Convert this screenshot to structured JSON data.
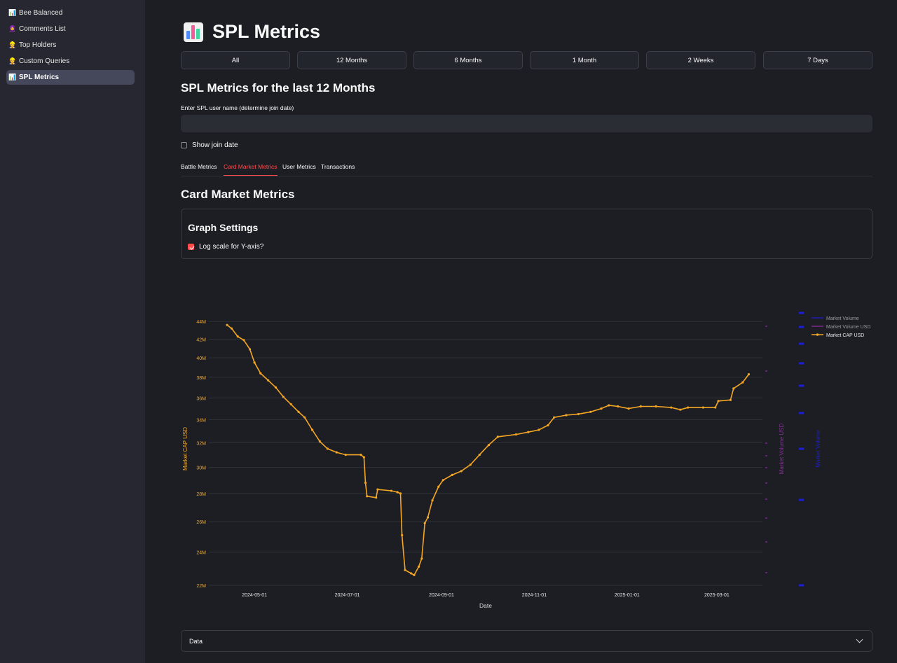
{
  "sidebar": {
    "items": [
      {
        "icon": "📊",
        "label": "Bee Balanced",
        "active": false
      },
      {
        "icon": "🧕",
        "label": "Comments List",
        "active": false
      },
      {
        "icon": "👷",
        "label": "Top Holders",
        "active": false
      },
      {
        "icon": "👷",
        "label": "Custom Queries",
        "active": false
      },
      {
        "icon": "📊",
        "label": "SPL Metrics",
        "active": true
      }
    ]
  },
  "header": {
    "title": "SPL Metrics",
    "icon": "bar-chart-icon"
  },
  "periods": [
    "All",
    "12 Months",
    "6 Months",
    "1 Month",
    "2 Weeks",
    "7 Days"
  ],
  "subtitle": "SPL Metrics for the last 12 Months",
  "user_input": {
    "label": "Enter SPL user name (determine join date)",
    "value": ""
  },
  "show_join_date": {
    "label": "Show join date",
    "checked": false
  },
  "tabs": [
    {
      "label": "Battle Metrics",
      "active": false
    },
    {
      "label": "Card Market Metrics",
      "active": true
    },
    {
      "label": "User Metrics",
      "active": false
    },
    {
      "label": "Transactions",
      "active": false
    }
  ],
  "section_title": "Card Market Metrics",
  "graph_settings": {
    "title": "Graph Settings",
    "log_scale_label": "Log scale for Y-axis?",
    "log_scale_checked": true
  },
  "expander": {
    "label": "Data"
  },
  "colors": {
    "accent": "#ff4b4b",
    "cap": "#f5a623",
    "volume_usd": "#8b2d9b",
    "volume": "#1f1fd1"
  },
  "chart_data": {
    "type": "line",
    "xlabel": "Date",
    "ylabel": "Market CAP USD",
    "y2label": "Market Volume USD",
    "y3label": "Market Volume",
    "yscale": "log",
    "ylim": [
      22000000,
      45000000
    ],
    "xlim": [
      "2024-04-01",
      "2025-03-31"
    ],
    "xticks": [
      "2024-05-01",
      "2024-07-01",
      "2024-09-01",
      "2024-11-01",
      "2025-01-01",
      "2025-03-01"
    ],
    "yticks": [
      {
        "v": 22000000,
        "label": "22M"
      },
      {
        "v": 24000000,
        "label": "24M"
      },
      {
        "v": 26000000,
        "label": "26M"
      },
      {
        "v": 28000000,
        "label": "28M"
      },
      {
        "v": 30000000,
        "label": "30M"
      },
      {
        "v": 32000000,
        "label": "32M"
      },
      {
        "v": 34000000,
        "label": "34M"
      },
      {
        "v": 36000000,
        "label": "36M"
      },
      {
        "v": 38000000,
        "label": "38M"
      },
      {
        "v": 40000000,
        "label": "40M"
      },
      {
        "v": 42000000,
        "label": "42M"
      },
      {
        "v": 44000000,
        "label": "44M"
      }
    ],
    "legend_position": "top-right",
    "series": [
      {
        "name": "Market Volume",
        "values": []
      },
      {
        "name": "Market Volume USD",
        "values": []
      },
      {
        "name": "Market CAP USD",
        "points": [
          [
            "2024-04-13",
            43.6
          ],
          [
            "2024-04-16",
            43.2
          ],
          [
            "2024-04-20",
            42.3
          ],
          [
            "2024-04-24",
            41.9
          ],
          [
            "2024-04-28",
            40.9
          ],
          [
            "2024-05-01",
            39.5
          ],
          [
            "2024-05-05",
            38.4
          ],
          [
            "2024-05-10",
            37.7
          ],
          [
            "2024-05-15",
            37.0
          ],
          [
            "2024-05-20",
            36.1
          ],
          [
            "2024-05-25",
            35.4
          ],
          [
            "2024-05-30",
            34.7
          ],
          [
            "2024-06-03",
            34.2
          ],
          [
            "2024-06-08",
            33.1
          ],
          [
            "2024-06-13",
            32.1
          ],
          [
            "2024-06-18",
            31.5
          ],
          [
            "2024-06-24",
            31.2
          ],
          [
            "2024-06-30",
            31.0
          ],
          [
            "2024-07-10",
            31.0
          ],
          [
            "2024-07-12",
            30.8
          ],
          [
            "2024-07-13",
            28.8
          ],
          [
            "2024-07-14",
            27.8
          ],
          [
            "2024-07-20",
            27.7
          ],
          [
            "2024-07-21",
            28.3
          ],
          [
            "2024-07-30",
            28.2
          ],
          [
            "2024-08-03",
            28.1
          ],
          [
            "2024-08-05",
            28.0
          ],
          [
            "2024-08-06",
            25.1
          ],
          [
            "2024-08-08",
            22.9
          ],
          [
            "2024-08-12",
            22.7
          ],
          [
            "2024-08-14",
            22.6
          ],
          [
            "2024-08-17",
            23.1
          ],
          [
            "2024-08-19",
            23.6
          ],
          [
            "2024-08-21",
            25.9
          ],
          [
            "2024-08-23",
            26.3
          ],
          [
            "2024-08-26",
            27.5
          ],
          [
            "2024-08-30",
            28.5
          ],
          [
            "2024-09-02",
            29.0
          ],
          [
            "2024-09-08",
            29.4
          ],
          [
            "2024-09-14",
            29.7
          ],
          [
            "2024-09-20",
            30.2
          ],
          [
            "2024-09-26",
            31.0
          ],
          [
            "2024-10-02",
            31.8
          ],
          [
            "2024-10-08",
            32.5
          ],
          [
            "2024-10-20",
            32.7
          ],
          [
            "2024-10-28",
            32.9
          ],
          [
            "2024-11-04",
            33.1
          ],
          [
            "2024-11-10",
            33.5
          ],
          [
            "2024-11-14",
            34.2
          ],
          [
            "2024-11-22",
            34.4
          ],
          [
            "2024-11-30",
            34.5
          ],
          [
            "2024-12-08",
            34.7
          ],
          [
            "2024-12-15",
            35.0
          ],
          [
            "2024-12-20",
            35.3
          ],
          [
            "2024-12-26",
            35.2
          ],
          [
            "2025-01-02",
            35.0
          ],
          [
            "2025-01-10",
            35.2
          ],
          [
            "2025-01-20",
            35.2
          ],
          [
            "2025-01-30",
            35.1
          ],
          [
            "2025-02-05",
            34.9
          ],
          [
            "2025-02-10",
            35.1
          ],
          [
            "2025-02-20",
            35.1
          ],
          [
            "2025-02-28",
            35.1
          ],
          [
            "2025-03-02",
            35.7
          ],
          [
            "2025-03-10",
            35.8
          ],
          [
            "2025-03-12",
            36.9
          ],
          [
            "2025-03-18",
            37.5
          ],
          [
            "2025-03-22",
            38.3
          ]
        ]
      }
    ]
  }
}
